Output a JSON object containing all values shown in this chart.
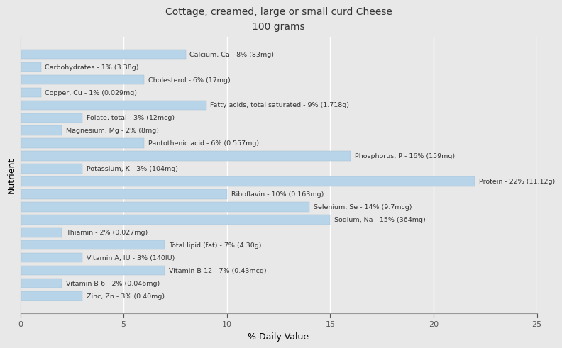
{
  "title": "Cottage, creamed, large or small curd Cheese",
  "subtitle": "100 grams",
  "xlabel": "% Daily Value",
  "ylabel": "Nutrient",
  "xlim": [
    0,
    25
  ],
  "bar_color": "#b8d4e8",
  "background_color": "#e8e8e8",
  "plot_bg_color": "#e8e8e8",
  "nutrients": [
    {
      "label": "Calcium, Ca - 8% (83mg)",
      "value": 8
    },
    {
      "label": "Carbohydrates - 1% (3.38g)",
      "value": 1
    },
    {
      "label": "Cholesterol - 6% (17mg)",
      "value": 6
    },
    {
      "label": "Copper, Cu - 1% (0.029mg)",
      "value": 1
    },
    {
      "label": "Fatty acids, total saturated - 9% (1.718g)",
      "value": 9
    },
    {
      "label": "Folate, total - 3% (12mcg)",
      "value": 3
    },
    {
      "label": "Magnesium, Mg - 2% (8mg)",
      "value": 2
    },
    {
      "label": "Pantothenic acid - 6% (0.557mg)",
      "value": 6
    },
    {
      "label": "Phosphorus, P - 16% (159mg)",
      "value": 16
    },
    {
      "label": "Potassium, K - 3% (104mg)",
      "value": 3
    },
    {
      "label": "Protein - 22% (11.12g)",
      "value": 22
    },
    {
      "label": "Riboflavin - 10% (0.163mg)",
      "value": 10
    },
    {
      "label": "Selenium, Se - 14% (9.7mcg)",
      "value": 14
    },
    {
      "label": "Sodium, Na - 15% (364mg)",
      "value": 15
    },
    {
      "label": "Thiamin - 2% (0.027mg)",
      "value": 2
    },
    {
      "label": "Total lipid (fat) - 7% (4.30g)",
      "value": 7
    },
    {
      "label": "Vitamin A, IU - 3% (140IU)",
      "value": 3
    },
    {
      "label": "Vitamin B-12 - 7% (0.43mcg)",
      "value": 7
    },
    {
      "label": "Vitamin B-6 - 2% (0.046mg)",
      "value": 2
    },
    {
      "label": "Zinc, Zn - 3% (0.40mg)",
      "value": 3
    }
  ],
  "xticks": [
    0,
    5,
    10,
    15,
    20,
    25
  ],
  "xtick_labels": [
    "0",
    "5",
    "10",
    "15",
    "20",
    "25"
  ],
  "title_fontsize": 10,
  "subtitle_fontsize": 9,
  "label_fontsize": 6.8,
  "axis_label_fontsize": 9,
  "tick_fontsize": 8
}
